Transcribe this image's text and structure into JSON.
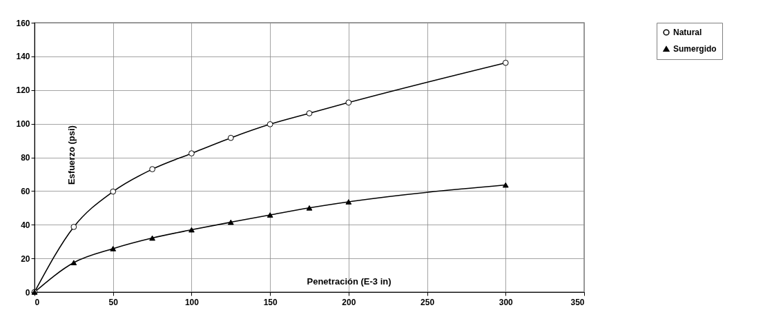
{
  "chart_data": {
    "type": "line",
    "xlabel": "Penetración (E-3 in)",
    "ylabel": "Esfuerzo (psi)",
    "xlim": [
      0,
      350
    ],
    "xticks": [
      0,
      50,
      100,
      150,
      200,
      250,
      300,
      350
    ],
    "ylim": [
      0,
      160
    ],
    "yticks": [
      0,
      20,
      40,
      60,
      80,
      100,
      120,
      140,
      160
    ],
    "grid": true,
    "legend": "right",
    "series": [
      {
        "name": "Natural",
        "color": "#000000",
        "marker": "circle",
        "x": [
          0,
          25,
          50,
          75,
          100,
          125,
          150,
          175,
          200,
          300
        ],
        "values": [
          0,
          38.7,
          59.7,
          73,
          82.4,
          91.6,
          99.7,
          106.2,
          112.6,
          136.2
        ]
      },
      {
        "name": "Sumergido",
        "color": "#000000",
        "marker": "triangle",
        "x": [
          0,
          25,
          50,
          75,
          100,
          125,
          150,
          175,
          200,
          300
        ],
        "values": [
          0,
          17.5,
          25.8,
          32.1,
          37,
          41.5,
          45.8,
          50,
          53.6,
          63.6
        ]
      }
    ]
  }
}
